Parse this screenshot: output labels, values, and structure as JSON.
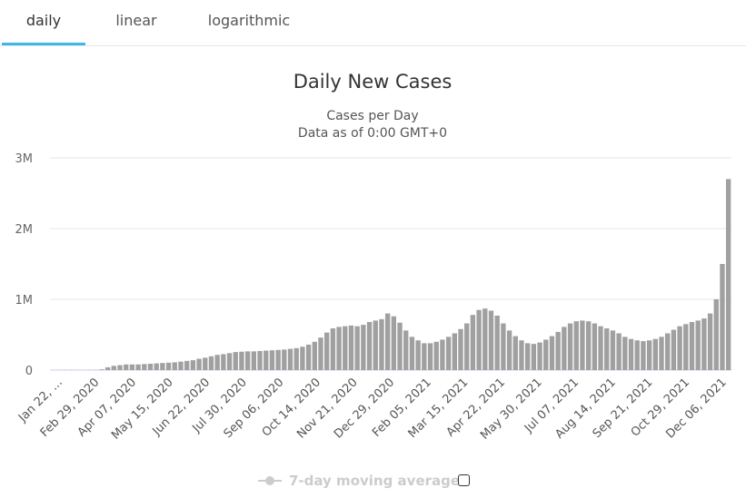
{
  "tabs": [
    {
      "label": "daily"
    },
    {
      "label": "linear"
    },
    {
      "label": "logarithmic"
    }
  ],
  "colors": {
    "bar": "#a0a0a0",
    "tab_accent": "#3cb9e6",
    "legend_disabled": "#cccccc",
    "grid": "#e6e6e6"
  },
  "legend": {
    "label": "7-day moving average",
    "checkbox_checked": false
  },
  "chart_data": {
    "type": "bar",
    "title": "Daily New Cases",
    "subtitle_lines": [
      "Cases per Day",
      "Data as of 0:00 GMT+0"
    ],
    "xlabel": "",
    "ylabel": "",
    "ylim": [
      0,
      3000000
    ],
    "grid": true,
    "y_ticks": [
      {
        "value": 0,
        "label": "0"
      },
      {
        "value": 1000000,
        "label": "1M"
      },
      {
        "value": 2000000,
        "label": "2M"
      },
      {
        "value": 3000000,
        "label": "3M"
      }
    ],
    "x_tick_labels": [
      "Jan 22, ...",
      "Feb 29, 2020",
      "Apr 07, 2020",
      "May 15, 2020",
      "Jun 22, 2020",
      "Jul 30, 2020",
      "Sep 06, 2020",
      "Oct 14, 2020",
      "Nov 21, 2020",
      "Dec 29, 2020",
      "Feb 05, 2021",
      "Mar 15, 2021",
      "Apr 22, 2021",
      "May 30, 2021",
      "Jul 07, 2021",
      "Aug 14, 2021",
      "Sep 21, 2021",
      "Oct 29, 2021",
      "Dec 06, 2021"
    ],
    "day_step": 7,
    "series": [
      {
        "name": "Daily New Cases (weekly samples)",
        "values": [
          1000,
          2000,
          3000,
          3000,
          2000,
          2000,
          3000,
          3000,
          10000,
          40000,
          60000,
          70000,
          80000,
          80000,
          80000,
          85000,
          90000,
          95000,
          100000,
          105000,
          110000,
          120000,
          130000,
          140000,
          160000,
          175000,
          195000,
          215000,
          225000,
          240000,
          255000,
          260000,
          265000,
          265000,
          270000,
          275000,
          280000,
          285000,
          290000,
          300000,
          310000,
          330000,
          360000,
          400000,
          460000,
          530000,
          590000,
          610000,
          620000,
          630000,
          620000,
          640000,
          680000,
          700000,
          720000,
          800000,
          760000,
          670000,
          560000,
          470000,
          420000,
          380000,
          380000,
          400000,
          430000,
          470000,
          520000,
          580000,
          660000,
          780000,
          850000,
          870000,
          840000,
          770000,
          660000,
          560000,
          480000,
          420000,
          380000,
          370000,
          390000,
          430000,
          480000,
          540000,
          610000,
          660000,
          690000,
          700000,
          690000,
          660000,
          620000,
          590000,
          560000,
          520000,
          470000,
          440000,
          420000,
          410000,
          420000,
          440000,
          470000,
          520000,
          570000,
          620000,
          650000,
          680000,
          700000,
          730000,
          800000,
          1000000,
          1500000,
          2700000
        ]
      }
    ]
  }
}
